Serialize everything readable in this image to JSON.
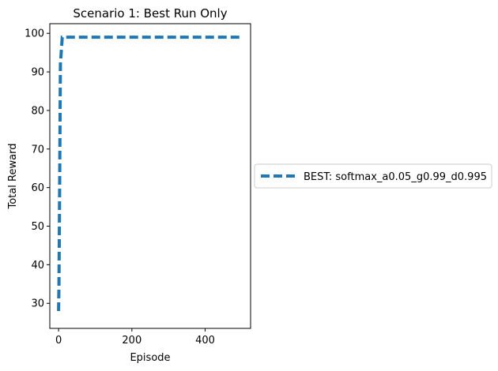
{
  "chart_data": {
    "type": "line",
    "title": "Scenario 1: Best Run Only",
    "xlabel": "Episode",
    "ylabel": "Total Reward",
    "xlim": [
      -24,
      524
    ],
    "ylim": [
      23.5,
      102.5
    ],
    "xticks": [
      0,
      200,
      400
    ],
    "yticks": [
      30,
      40,
      50,
      60,
      70,
      80,
      90,
      100
    ],
    "grid": false,
    "legend_position": "outside-right",
    "series": [
      {
        "name": "BEST: softmax_a0.05_g0.99_d0.995",
        "color": "#1f77b4",
        "line_style": "dashed",
        "x": [
          0,
          1,
          2,
          3,
          4,
          5,
          10,
          50,
          100,
          200,
          300,
          400,
          450,
          499
        ],
        "y": [
          28,
          35,
          48,
          62,
          78,
          92,
          99,
          99,
          99,
          99,
          99,
          99,
          99,
          99
        ]
      }
    ]
  }
}
